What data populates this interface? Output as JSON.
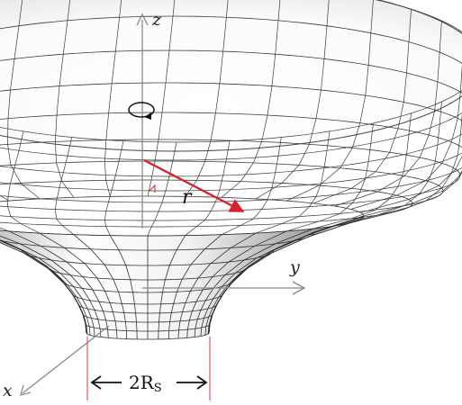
{
  "axes": {
    "z_label": "z",
    "y_label": "y",
    "x_label": "x"
  },
  "annotations": {
    "radius_label": "r",
    "throat_width_prefix": "2R",
    "throat_width_subscript": "S"
  },
  "colors": {
    "radius_arrow": "#d7212b",
    "throat_guides": "#e05a63",
    "axes": "#8a8a8a",
    "mesh_lines": "#333333",
    "surface_light": "#ffffff",
    "surface_dark": "#8e8e8e"
  },
  "icons": {
    "rotation": "rotation-arrow-icon"
  }
}
